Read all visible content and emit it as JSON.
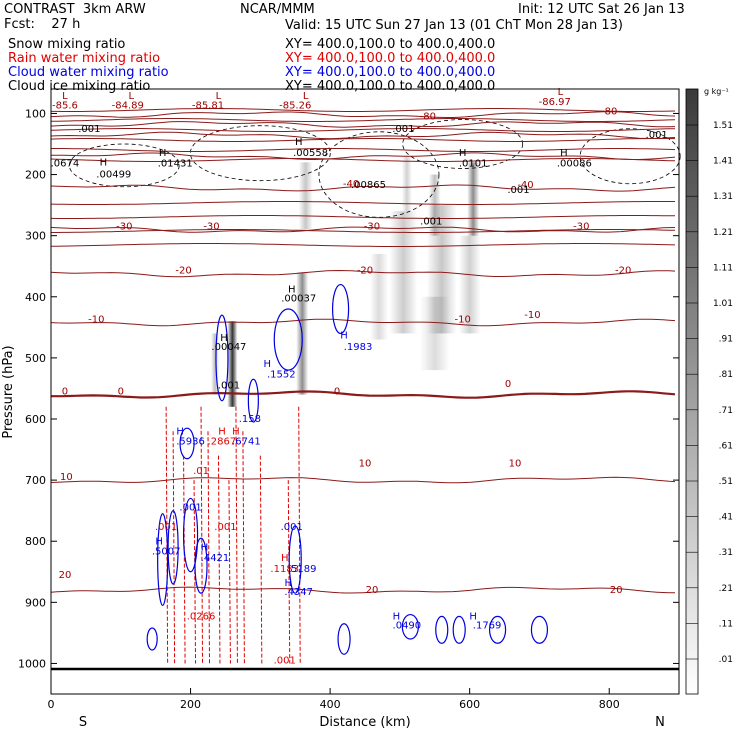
{
  "header": {
    "title_left": "CONTRAST  3km ARW",
    "forecast": "Fcst:    27 h",
    "center_label": "NCAR/MMM",
    "valid": "Valid: 15 UTC Sun 27 Jan 13 (01 ChT Mon 28 Jan 13)",
    "init": "Init: 12 UTC Sat 26 Jan 13",
    "fields": [
      {
        "label": "Snow mixing ratio",
        "xy": "XY= 400.0,100.0 to 400.0,400.0",
        "color": "#000000"
      },
      {
        "label": "Rain water mixing ratio",
        "xy": "XY= 400.0,100.0 to 400.0,400.0",
        "color": "#e00000"
      },
      {
        "label": "Cloud water mixing ratio",
        "xy": "XY= 400.0,100.0 to 400.0,400.0",
        "color": "#0000e0"
      },
      {
        "label": "Cloud ice mixing ratio",
        "xy": "XY= 400.0,100.0 to 400.0,400.0",
        "color": "#000000"
      }
    ]
  },
  "colorbar": {
    "unit": "g kg⁻¹",
    "ticks": [
      ".01",
      ".11",
      ".21",
      ".31",
      ".41",
      ".51",
      ".61",
      ".71",
      ".81",
      ".91",
      "1.01",
      "1.11",
      "1.21",
      "1.31",
      "1.41",
      "1.51"
    ]
  },
  "chart_data": {
    "type": "contour cross-section",
    "xlabel": "Distance (km)",
    "ylabel": "Pressure (hPa)",
    "xlim": [
      0,
      900
    ],
    "x_ticks": [
      0,
      200,
      400,
      600,
      800
    ],
    "ylim": [
      1050,
      60
    ],
    "y_ticks": [
      100,
      200,
      300,
      400,
      500,
      600,
      700,
      800,
      900,
      1000
    ],
    "x_end_labels": {
      "left": "S",
      "right": "N"
    },
    "temperature_contours": [
      {
        "level": "-80",
        "p": 102
      },
      {
        "level": "-70",
        "p": 118
      },
      {
        "level": "-60",
        "p": 136
      },
      {
        "level": "-50",
        "p": 170
      },
      {
        "level": "-40",
        "p": 222
      },
      {
        "level": "-30",
        "p": 290
      },
      {
        "level": "-20",
        "p": 362
      },
      {
        "level": "-10",
        "p": 442
      },
      {
        "level": "0",
        "p": 560
      },
      {
        "level": "10",
        "p": 700
      },
      {
        "level": "20",
        "p": 880
      }
    ],
    "text_labels": [
      {
        "text": "-85.6",
        "x": 20,
        "p": 92,
        "color": "#a00000"
      },
      {
        "text": "-84.89",
        "x": 110,
        "p": 92,
        "color": "#a00000"
      },
      {
        "text": "-85.81",
        "x": 225,
        "p": 92,
        "color": "#a00000"
      },
      {
        "text": "-85.26",
        "x": 350,
        "p": 92,
        "color": "#a00000"
      },
      {
        "text": "-86.97",
        "x": 722,
        "p": 86,
        "color": "#a00000"
      },
      {
        "text": "-80",
        "x": 540,
        "p": 110,
        "color": "#a00000"
      },
      {
        "text": "-80",
        "x": 800,
        "p": 102,
        "color": "#a00000"
      },
      {
        "text": "-40",
        "x": 430,
        "p": 220,
        "color": "#a00000"
      },
      {
        "text": "-40",
        "x": 680,
        "p": 222,
        "color": "#a00000"
      },
      {
        "text": "-30",
        "x": 105,
        "p": 290,
        "color": "#a00000"
      },
      {
        "text": "-30",
        "x": 230,
        "p": 290,
        "color": "#a00000"
      },
      {
        "text": "-30",
        "x": 460,
        "p": 290,
        "color": "#a00000"
      },
      {
        "text": "-30",
        "x": 760,
        "p": 290,
        "color": "#a00000"
      },
      {
        "text": "-20",
        "x": 190,
        "p": 362,
        "color": "#a00000"
      },
      {
        "text": "-20",
        "x": 450,
        "p": 362,
        "color": "#a00000"
      },
      {
        "text": "-20",
        "x": 820,
        "p": 362,
        "color": "#a00000"
      },
      {
        "text": "-10",
        "x": 65,
        "p": 442,
        "color": "#a00000"
      },
      {
        "text": "-10",
        "x": 590,
        "p": 442,
        "color": "#a00000"
      },
      {
        "text": "-10",
        "x": 690,
        "p": 435,
        "color": "#a00000"
      },
      {
        "text": "0",
        "x": 20,
        "p": 560,
        "color": "#a00000"
      },
      {
        "text": "0",
        "x": 100,
        "p": 560,
        "color": "#a00000"
      },
      {
        "text": "0",
        "x": 410,
        "p": 560,
        "color": "#a00000"
      },
      {
        "text": "0",
        "x": 655,
        "p": 548,
        "color": "#a00000"
      },
      {
        "text": "10",
        "x": 22,
        "p": 700,
        "color": "#a00000"
      },
      {
        "text": "10",
        "x": 450,
        "p": 678,
        "color": "#a00000"
      },
      {
        "text": "10",
        "x": 665,
        "p": 678,
        "color": "#a00000"
      },
      {
        "text": "20",
        "x": 20,
        "p": 860,
        "color": "#a00000"
      },
      {
        "text": "20",
        "x": 460,
        "p": 885,
        "color": "#a00000"
      },
      {
        "text": "20",
        "x": 810,
        "p": 885,
        "color": "#a00000"
      },
      {
        "text": "L",
        "x": 20,
        "p": 76,
        "color": "#a00000"
      },
      {
        "text": "L",
        "x": 115,
        "p": 76,
        "color": "#a00000"
      },
      {
        "text": "L",
        "x": 240,
        "p": 76,
        "color": "#a00000"
      },
      {
        "text": "L",
        "x": 365,
        "p": 76,
        "color": "#a00000"
      },
      {
        "text": "L",
        "x": 730,
        "p": 70,
        "color": "#a00000"
      },
      {
        "text": ".001",
        "x": 55,
        "p": 130,
        "color": "#000000"
      },
      {
        "text": ".001",
        "x": 505,
        "p": 130,
        "color": "#000000"
      },
      {
        "text": ".001",
        "x": 868,
        "p": 140,
        "color": "#000000"
      },
      {
        "text": "H",
        "x": 75,
        "p": 185,
        "color": "#000000"
      },
      {
        "text": ".00499",
        "x": 90,
        "p": 205,
        "color": "#000000"
      },
      {
        "text": ".0674",
        "x": 20,
        "p": 187,
        "color": "#000000"
      },
      {
        "text": "H",
        "x": 160,
        "p": 170,
        "color": "#000000"
      },
      {
        "text": ".01431",
        "x": 178,
        "p": 187,
        "color": "#000000"
      },
      {
        "text": "H",
        "x": 355,
        "p": 152,
        "color": "#000000"
      },
      {
        "text": ".00558",
        "x": 372,
        "p": 170,
        "color": "#000000"
      },
      {
        "text": ".00865",
        "x": 455,
        "p": 222,
        "color": "#000000"
      },
      {
        "text": "H",
        "x": 590,
        "p": 170,
        "color": "#000000"
      },
      {
        "text": ".0101",
        "x": 605,
        "p": 187,
        "color": "#000000"
      },
      {
        "text": "H",
        "x": 735,
        "p": 170,
        "color": "#000000"
      },
      {
        "text": ".00086",
        "x": 750,
        "p": 187,
        "color": "#000000"
      },
      {
        "text": ".001",
        "x": 670,
        "p": 230,
        "color": "#000000"
      },
      {
        "text": ".001",
        "x": 545,
        "p": 282,
        "color": "#000000"
      },
      {
        "text": "H",
        "x": 345,
        "p": 393,
        "color": "#000000"
      },
      {
        "text": ".00037",
        "x": 355,
        "p": 408,
        "color": "#000000"
      },
      {
        "text": "H",
        "x": 248,
        "p": 472,
        "color": "#000000"
      },
      {
        "text": ".00047",
        "x": 255,
        "p": 487,
        "color": "#000000"
      },
      {
        "text": ".001",
        "x": 255,
        "p": 550,
        "color": "#000000"
      },
      {
        "text": "H",
        "x": 420,
        "p": 468,
        "color": "#0000e0"
      },
      {
        "text": ".1983",
        "x": 440,
        "p": 487,
        "color": "#0000e0"
      },
      {
        "text": "H",
        "x": 310,
        "p": 515,
        "color": "#0000e0"
      },
      {
        "text": ".1552",
        "x": 330,
        "p": 532,
        "color": "#0000e0"
      },
      {
        "text": ".158",
        "x": 285,
        "p": 605,
        "color": "#0000e0"
      },
      {
        "text": "H",
        "x": 185,
        "p": 625,
        "color": "#0000e0"
      },
      {
        "text": ".5936",
        "x": 200,
        "p": 642,
        "color": "#0000e0"
      },
      {
        "text": "H",
        "x": 245,
        "p": 625,
        "color": "#e00000"
      },
      {
        "text": ".2867",
        "x": 245,
        "p": 642,
        "color": "#e00000"
      },
      {
        "text": "H",
        "x": 265,
        "p": 625,
        "color": "#e00000"
      },
      {
        "text": ".6741",
        "x": 280,
        "p": 642,
        "color": "#0000e0"
      },
      {
        "text": ".01",
        "x": 215,
        "p": 690,
        "color": "#e00000"
      },
      {
        "text": ".001",
        "x": 200,
        "p": 750,
        "color": "#0000e0"
      },
      {
        "text": ".001",
        "x": 165,
        "p": 782,
        "color": "#e00000"
      },
      {
        "text": ".001",
        "x": 250,
        "p": 782,
        "color": "#e00000"
      },
      {
        "text": ".001",
        "x": 345,
        "p": 782,
        "color": "#0000e0"
      },
      {
        "text": "H",
        "x": 155,
        "p": 805,
        "color": "#0000e0"
      },
      {
        "text": ".5007",
        "x": 165,
        "p": 822,
        "color": "#0000e0"
      },
      {
        "text": "H",
        "x": 220,
        "p": 815,
        "color": "#0000e0"
      },
      {
        "text": ".4421",
        "x": 235,
        "p": 832,
        "color": "#0000e0"
      },
      {
        "text": "H",
        "x": 335,
        "p": 832,
        "color": "#e00000"
      },
      {
        "text": ".1183",
        "x": 335,
        "p": 850,
        "color": "#e00000"
      },
      {
        "text": ".5189",
        "x": 360,
        "p": 850,
        "color": "#0000e0"
      },
      {
        "text": "H",
        "x": 340,
        "p": 873,
        "color": "#0000e0"
      },
      {
        "text": ".4347",
        "x": 355,
        "p": 888,
        "color": "#0000e0"
      },
      {
        "text": ".0266",
        "x": 215,
        "p": 928,
        "color": "#e00000"
      },
      {
        "text": "H",
        "x": 495,
        "p": 928,
        "color": "#0000e0"
      },
      {
        "text": ".0490",
        "x": 510,
        "p": 943,
        "color": "#0000e0"
      },
      {
        "text": "H",
        "x": 605,
        "p": 928,
        "color": "#0000e0"
      },
      {
        "text": ".1769",
        "x": 625,
        "p": 943,
        "color": "#0000e0"
      },
      {
        "text": ".001",
        "x": 335,
        "p": 1000,
        "color": "#e00000"
      }
    ],
    "ice_columns": [
      {
        "x": 365,
        "p1": 180,
        "p2": 290,
        "w": 14,
        "a": 0.22
      },
      {
        "x": 510,
        "p1": 170,
        "p2": 260,
        "w": 10,
        "a": 0.18
      },
      {
        "x": 550,
        "p1": 200,
        "p2": 300,
        "w": 12,
        "a": 0.25
      },
      {
        "x": 605,
        "p1": 180,
        "p2": 300,
        "w": 12,
        "a": 0.45
      },
      {
        "x": 560,
        "p1": 250,
        "p2": 460,
        "w": 30,
        "a": 0.22
      },
      {
        "x": 505,
        "p1": 260,
        "p2": 460,
        "w": 28,
        "a": 0.2
      },
      {
        "x": 600,
        "p1": 300,
        "p2": 460,
        "w": 22,
        "a": 0.18
      },
      {
        "x": 470,
        "p1": 330,
        "p2": 470,
        "w": 18,
        "a": 0.14
      },
      {
        "x": 550,
        "p1": 400,
        "p2": 520,
        "w": 30,
        "a": 0.14
      },
      {
        "x": 360,
        "p1": 360,
        "p2": 560,
        "w": 12,
        "a": 0.45
      },
      {
        "x": 260,
        "p1": 440,
        "p2": 580,
        "w": 10,
        "a": 0.8
      },
      {
        "x": 235,
        "p1": 460,
        "p2": 560,
        "w": 8,
        "a": 0.25
      }
    ],
    "rain_columns": [
      165,
      175,
      190,
      205,
      215,
      225,
      240,
      255,
      265,
      275,
      300,
      340,
      355
    ],
    "cloud_water_cells": [
      {
        "x": 160,
        "p": 830,
        "rx": 5,
        "rp": 75
      },
      {
        "x": 175,
        "p": 810,
        "rx": 5,
        "rp": 60
      },
      {
        "x": 200,
        "p": 790,
        "rx": 7,
        "rp": 60
      },
      {
        "x": 215,
        "p": 840,
        "rx": 6,
        "rp": 45
      },
      {
        "x": 195,
        "p": 640,
        "rx": 7,
        "rp": 25
      },
      {
        "x": 245,
        "p": 500,
        "rx": 6,
        "rp": 70
      },
      {
        "x": 290,
        "p": 570,
        "rx": 5,
        "rp": 35
      },
      {
        "x": 340,
        "p": 470,
        "rx": 14,
        "rp": 50
      },
      {
        "x": 415,
        "p": 420,
        "rx": 8,
        "rp": 40
      },
      {
        "x": 350,
        "p": 830,
        "rx": 6,
        "rp": 55
      },
      {
        "x": 420,
        "p": 960,
        "rx": 6,
        "rp": 25
      },
      {
        "x": 515,
        "p": 940,
        "rx": 8,
        "rp": 20
      },
      {
        "x": 560,
        "p": 945,
        "rx": 6,
        "rp": 22
      },
      {
        "x": 585,
        "p": 945,
        "rx": 6,
        "rp": 22
      },
      {
        "x": 640,
        "p": 945,
        "rx": 8,
        "rp": 22
      },
      {
        "x": 700,
        "p": 945,
        "rx": 8,
        "rp": 22
      },
      {
        "x": 145,
        "p": 960,
        "rx": 5,
        "rp": 18
      }
    ],
    "snow_clouds": [
      {
        "x": 105,
        "p": 185,
        "rx": 55,
        "rp": 35
      },
      {
        "x": 300,
        "p": 165,
        "rx": 70,
        "rp": 45
      },
      {
        "x": 470,
        "p": 200,
        "rx": 60,
        "rp": 70
      },
      {
        "x": 590,
        "p": 150,
        "rx": 60,
        "rp": 40
      },
      {
        "x": 830,
        "p": 170,
        "rx": 50,
        "rp": 45
      }
    ]
  }
}
